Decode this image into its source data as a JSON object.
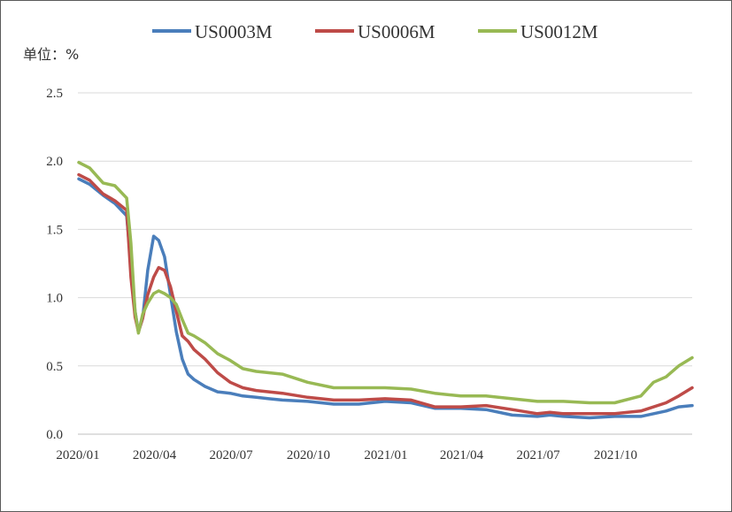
{
  "chart_data": {
    "type": "line",
    "title": "",
    "unit_label": "单位：%",
    "xlabel": "",
    "ylabel": "",
    "ylim": [
      0,
      2.5
    ],
    "yticks": [
      {
        "value": 0,
        "label": "0.0"
      },
      {
        "value": 0.5,
        "label": "0.5"
      },
      {
        "value": 1,
        "label": "1.0"
      },
      {
        "value": 1.5,
        "label": "1.5"
      },
      {
        "value": 2,
        "label": "2.0"
      },
      {
        "value": 2.5,
        "label": "2.5"
      }
    ],
    "xlim": [
      "2020-01-01",
      "2021-12-31"
    ],
    "xticks": [
      {
        "value": "2020-01-01",
        "label": "2020/01"
      },
      {
        "value": "2020-04-01",
        "label": "2020/04"
      },
      {
        "value": "2020-07-01",
        "label": "2020/07"
      },
      {
        "value": "2020-10-01",
        "label": "2020/10"
      },
      {
        "value": "2021-01-01",
        "label": "2021/01"
      },
      {
        "value": "2021-04-01",
        "label": "2021/04"
      },
      {
        "value": "2021-07-01",
        "label": "2021/07"
      },
      {
        "value": "2021-10-01",
        "label": "2021/10"
      }
    ],
    "grid": "horizontal",
    "legend_position": "top",
    "series": [
      {
        "name": "US0003M",
        "color": "#4a7ebb",
        "points": [
          [
            "2020-01-02",
            1.87
          ],
          [
            "2020-01-15",
            1.83
          ],
          [
            "2020-01-31",
            1.75
          ],
          [
            "2020-02-14",
            1.69
          ],
          [
            "2020-02-28",
            1.6
          ],
          [
            "2020-03-04",
            1.25
          ],
          [
            "2020-03-09",
            0.9
          ],
          [
            "2020-03-13",
            0.75
          ],
          [
            "2020-03-18",
            0.85
          ],
          [
            "2020-03-24",
            1.2
          ],
          [
            "2020-03-31",
            1.45
          ],
          [
            "2020-04-06",
            1.42
          ],
          [
            "2020-04-13",
            1.3
          ],
          [
            "2020-04-20",
            1.02
          ],
          [
            "2020-04-27",
            0.75
          ],
          [
            "2020-05-04",
            0.55
          ],
          [
            "2020-05-11",
            0.44
          ],
          [
            "2020-05-18",
            0.4
          ],
          [
            "2020-05-31",
            0.35
          ],
          [
            "2020-06-15",
            0.31
          ],
          [
            "2020-06-30",
            0.3
          ],
          [
            "2020-07-15",
            0.28
          ],
          [
            "2020-07-31",
            0.27
          ],
          [
            "2020-08-15",
            0.26
          ],
          [
            "2020-08-31",
            0.25
          ],
          [
            "2020-09-30",
            0.24
          ],
          [
            "2020-10-31",
            0.22
          ],
          [
            "2020-11-30",
            0.22
          ],
          [
            "2020-12-31",
            0.24
          ],
          [
            "2021-01-31",
            0.23
          ],
          [
            "2021-02-28",
            0.19
          ],
          [
            "2021-03-31",
            0.19
          ],
          [
            "2021-04-30",
            0.18
          ],
          [
            "2021-05-31",
            0.14
          ],
          [
            "2021-06-30",
            0.13
          ],
          [
            "2021-07-15",
            0.14
          ],
          [
            "2021-07-31",
            0.13
          ],
          [
            "2021-08-31",
            0.12
          ],
          [
            "2021-09-30",
            0.13
          ],
          [
            "2021-10-31",
            0.13
          ],
          [
            "2021-11-30",
            0.17
          ],
          [
            "2021-12-15",
            0.2
          ],
          [
            "2021-12-31",
            0.21
          ]
        ]
      },
      {
        "name": "US0006M",
        "color": "#be4b48",
        "points": [
          [
            "2020-01-02",
            1.9
          ],
          [
            "2020-01-15",
            1.86
          ],
          [
            "2020-01-31",
            1.76
          ],
          [
            "2020-02-14",
            1.71
          ],
          [
            "2020-02-28",
            1.64
          ],
          [
            "2020-03-04",
            1.15
          ],
          [
            "2020-03-09",
            0.86
          ],
          [
            "2020-03-13",
            0.75
          ],
          [
            "2020-03-18",
            0.85
          ],
          [
            "2020-03-24",
            1.02
          ],
          [
            "2020-03-31",
            1.15
          ],
          [
            "2020-04-06",
            1.22
          ],
          [
            "2020-04-13",
            1.2
          ],
          [
            "2020-04-20",
            1.08
          ],
          [
            "2020-04-27",
            0.9
          ],
          [
            "2020-05-04",
            0.72
          ],
          [
            "2020-05-11",
            0.68
          ],
          [
            "2020-05-18",
            0.62
          ],
          [
            "2020-05-31",
            0.55
          ],
          [
            "2020-06-15",
            0.45
          ],
          [
            "2020-06-30",
            0.38
          ],
          [
            "2020-07-15",
            0.34
          ],
          [
            "2020-07-31",
            0.32
          ],
          [
            "2020-08-15",
            0.31
          ],
          [
            "2020-08-31",
            0.3
          ],
          [
            "2020-09-30",
            0.27
          ],
          [
            "2020-10-31",
            0.25
          ],
          [
            "2020-11-30",
            0.25
          ],
          [
            "2020-12-31",
            0.26
          ],
          [
            "2021-01-31",
            0.25
          ],
          [
            "2021-02-28",
            0.2
          ],
          [
            "2021-03-31",
            0.2
          ],
          [
            "2021-04-30",
            0.21
          ],
          [
            "2021-05-31",
            0.18
          ],
          [
            "2021-06-30",
            0.15
          ],
          [
            "2021-07-15",
            0.16
          ],
          [
            "2021-07-31",
            0.15
          ],
          [
            "2021-08-31",
            0.15
          ],
          [
            "2021-09-30",
            0.15
          ],
          [
            "2021-10-31",
            0.17
          ],
          [
            "2021-11-30",
            0.23
          ],
          [
            "2021-12-15",
            0.28
          ],
          [
            "2021-12-31",
            0.34
          ]
        ]
      },
      {
        "name": "US0012M",
        "color": "#98b954",
        "points": [
          [
            "2020-01-02",
            1.99
          ],
          [
            "2020-01-15",
            1.95
          ],
          [
            "2020-01-31",
            1.84
          ],
          [
            "2020-02-14",
            1.82
          ],
          [
            "2020-02-28",
            1.73
          ],
          [
            "2020-03-04",
            1.4
          ],
          [
            "2020-03-09",
            0.9
          ],
          [
            "2020-03-13",
            0.74
          ],
          [
            "2020-03-18",
            0.88
          ],
          [
            "2020-03-24",
            0.96
          ],
          [
            "2020-03-31",
            1.03
          ],
          [
            "2020-04-06",
            1.05
          ],
          [
            "2020-04-13",
            1.03
          ],
          [
            "2020-04-20",
            1.0
          ],
          [
            "2020-04-27",
            0.95
          ],
          [
            "2020-05-04",
            0.84
          ],
          [
            "2020-05-11",
            0.74
          ],
          [
            "2020-05-18",
            0.72
          ],
          [
            "2020-05-31",
            0.67
          ],
          [
            "2020-06-15",
            0.59
          ],
          [
            "2020-06-30",
            0.54
          ],
          [
            "2020-07-15",
            0.48
          ],
          [
            "2020-07-31",
            0.46
          ],
          [
            "2020-08-15",
            0.45
          ],
          [
            "2020-08-31",
            0.44
          ],
          [
            "2020-09-30",
            0.38
          ],
          [
            "2020-10-31",
            0.34
          ],
          [
            "2020-11-30",
            0.34
          ],
          [
            "2020-12-31",
            0.34
          ],
          [
            "2021-01-31",
            0.33
          ],
          [
            "2021-02-28",
            0.3
          ],
          [
            "2021-03-31",
            0.28
          ],
          [
            "2021-04-30",
            0.28
          ],
          [
            "2021-05-31",
            0.26
          ],
          [
            "2021-06-30",
            0.24
          ],
          [
            "2021-07-15",
            0.24
          ],
          [
            "2021-07-31",
            0.24
          ],
          [
            "2021-08-31",
            0.23
          ],
          [
            "2021-09-30",
            0.23
          ],
          [
            "2021-10-31",
            0.28
          ],
          [
            "2021-11-15",
            0.38
          ],
          [
            "2021-11-30",
            0.42
          ],
          [
            "2021-12-15",
            0.5
          ],
          [
            "2021-12-31",
            0.56
          ]
        ]
      }
    ]
  }
}
